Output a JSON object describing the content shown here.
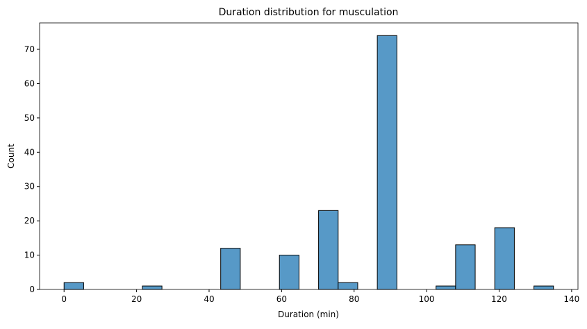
{
  "chart_data": {
    "type": "histogram",
    "title": "Duration distribution for musculation",
    "x_label": "Duration (min)",
    "y_label": "Count",
    "bins": [
      0,
      5.4,
      10.8,
      16.2,
      21.6,
      27,
      32.4,
      37.8,
      43.2,
      48.6,
      54,
      59.4,
      64.8,
      70.2,
      75.6,
      81,
      86.4,
      91.8,
      97.2,
      102.6,
      108,
      113.4,
      118.8,
      124.2,
      129.6,
      135
    ],
    "counts": [
      2,
      0,
      0,
      0,
      1,
      0,
      0,
      0,
      12,
      0,
      0,
      10,
      0,
      23,
      2,
      0,
      74,
      0,
      0,
      1,
      13,
      0,
      18,
      0,
      1
    ],
    "color": "#5799c7",
    "xlim": [
      -6.75,
      141.75
    ],
    "xticks": [
      0,
      20,
      40,
      60,
      80,
      100,
      120,
      140
    ],
    "ylim": [
      0,
      77.7
    ],
    "yticks": [
      0,
      10,
      20,
      30,
      40,
      50,
      60,
      70
    ]
  }
}
